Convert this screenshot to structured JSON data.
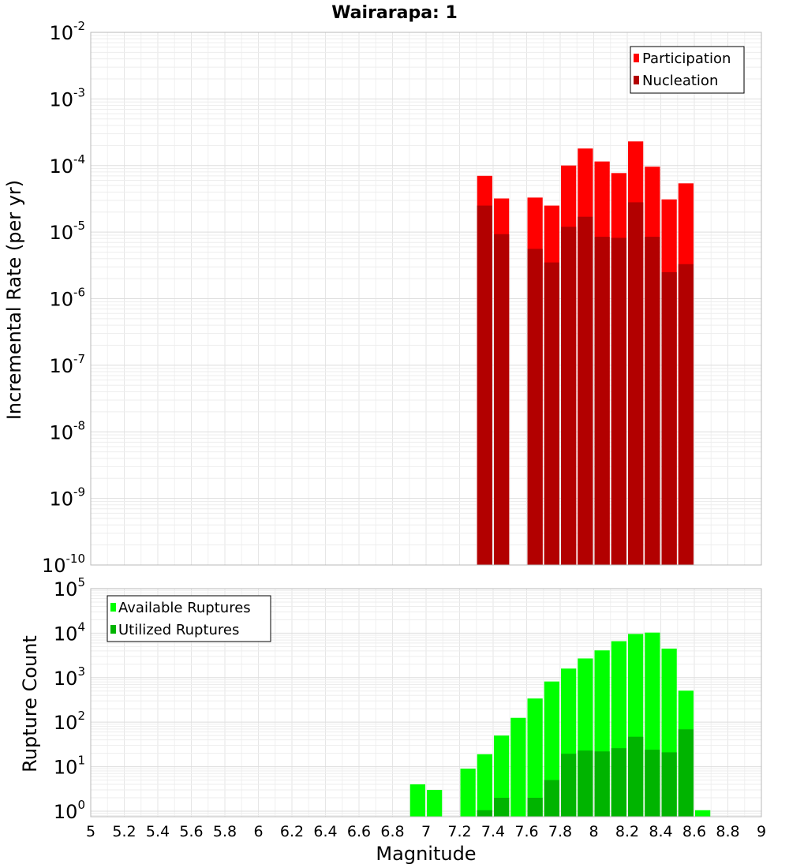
{
  "colors": {
    "participation": "#ff0000",
    "nucleation": "#b20000",
    "available": "#00ff00",
    "utilized": "#00b400"
  },
  "chart_data": [
    {
      "type": "bar",
      "title": "Wairarapa: 1",
      "ylabel": "Incremental Rate (per yr)",
      "xlabel": "",
      "yscale": "log",
      "ylim": [
        1e-10,
        0.01
      ],
      "xlim": [
        5,
        9
      ],
      "y_ticks": [
        {
          "exp": "-10"
        },
        {
          "exp": "-9"
        },
        {
          "exp": "-8"
        },
        {
          "exp": "-7"
        },
        {
          "exp": "-6"
        },
        {
          "exp": "-5"
        },
        {
          "exp": "-4"
        },
        {
          "exp": "-3"
        },
        {
          "exp": "-2"
        }
      ],
      "x": [
        7.35,
        7.45,
        7.65,
        7.75,
        7.85,
        7.95,
        8.05,
        8.15,
        8.25,
        8.35,
        8.45,
        8.55
      ],
      "series": [
        {
          "name": "Participation",
          "color": "#ff0000",
          "values": [
            7e-05,
            3.2e-05,
            3.3e-05,
            2.5e-05,
            0.0001,
            0.00018,
            0.000115,
            7.7e-05,
            0.00023,
            9.6e-05,
            3.1e-05,
            5.4e-05
          ]
        },
        {
          "name": "Nucleation",
          "color": "#b20000",
          "values": [
            2.5e-05,
            9.3e-06,
            5.6e-06,
            3.5e-06,
            1.2e-05,
            1.7e-05,
            8.5e-06,
            8.2e-06,
            2.8e-05,
            8.5e-06,
            2.5e-06,
            3.3e-06
          ]
        }
      ],
      "legend": [
        "Participation",
        "Nucleation"
      ],
      "legend_position": "top-right",
      "grid": true
    },
    {
      "type": "bar",
      "title": "",
      "ylabel": "Rupture Count",
      "xlabel": "Magnitude",
      "yscale": "log",
      "ylim": [
        0.75,
        100000.0
      ],
      "xlim": [
        5,
        9
      ],
      "y_ticks": [
        {
          "exp": "0"
        },
        {
          "exp": "1"
        },
        {
          "exp": "2"
        },
        {
          "exp": "3"
        },
        {
          "exp": "4"
        },
        {
          "exp": "5"
        }
      ],
      "x_ticks": [
        "5",
        "5.2",
        "5.4",
        "5.6",
        "5.8",
        "6",
        "6.2",
        "6.4",
        "6.6",
        "6.8",
        "7",
        "7.2",
        "7.4",
        "7.6",
        "7.8",
        "8",
        "8.2",
        "8.4",
        "8.6",
        "8.8",
        "9"
      ],
      "x": [
        6.95,
        7.05,
        7.25,
        7.35,
        7.45,
        7.55,
        7.65,
        7.75,
        7.85,
        7.95,
        8.05,
        8.15,
        8.25,
        8.35,
        8.45,
        8.55,
        8.65
      ],
      "series": [
        {
          "name": "Available Ruptures",
          "color": "#00ff00",
          "values": [
            4,
            3,
            9,
            19,
            50,
            125,
            340,
            820,
            1600,
            2700,
            4100,
            6600,
            9600,
            10300,
            4500,
            510,
            1.05
          ]
        },
        {
          "name": "Utilized Ruptures",
          "color": "#00b400",
          "values": [
            0,
            0,
            0,
            1.05,
            2,
            0,
            2,
            5,
            19.5,
            23,
            22,
            26,
            47,
            24,
            21,
            69,
            0
          ]
        }
      ],
      "legend": [
        "Available Ruptures",
        "Utilized Ruptures"
      ],
      "legend_position": "top-left",
      "grid": true
    }
  ]
}
